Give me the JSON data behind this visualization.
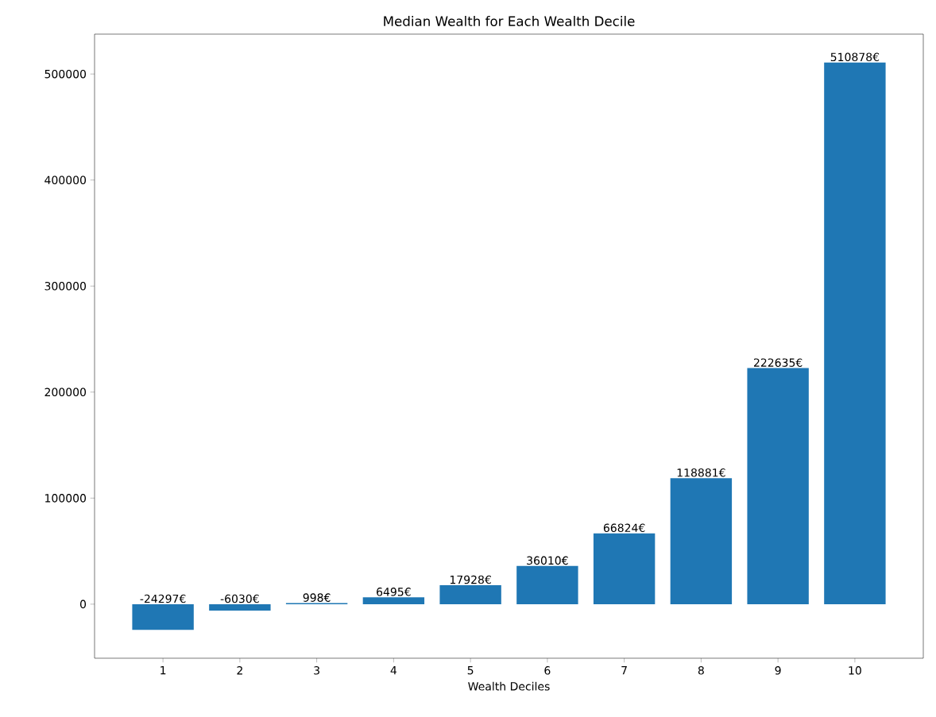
{
  "chart_data": {
    "type": "bar",
    "title": "Median Wealth for Each Wealth Decile",
    "xlabel": "Wealth Deciles",
    "categories": [
      "1",
      "2",
      "3",
      "4",
      "5",
      "6",
      "7",
      "8",
      "9",
      "10"
    ],
    "values": [
      -24297,
      -6030,
      998,
      6495,
      17928,
      36010,
      66824,
      118881,
      222635,
      510878
    ],
    "value_labels": [
      "-24297€",
      "-6030€",
      "998€",
      "6495€",
      "17928€",
      "36010€",
      "66824€",
      "118881€",
      "222635€",
      "510878€"
    ],
    "color": "#1f77b4",
    "ylim": [
      -51000,
      537600
    ],
    "yticks": [
      0,
      100000,
      200000,
      300000,
      400000,
      500000
    ],
    "grid": false
  }
}
